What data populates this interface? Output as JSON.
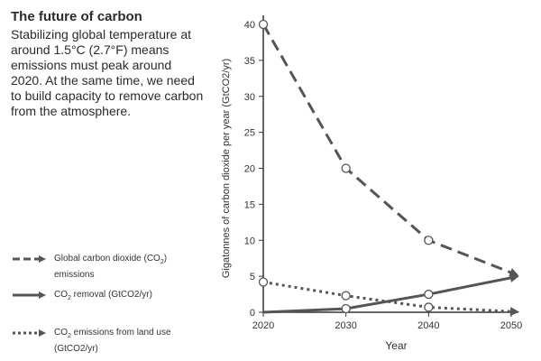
{
  "intro": {
    "title": "The future of carbon",
    "body": "Stabilizing global temperature at around 1.5°C (2.7°F) means emissions must peak around 2020. At the same time, we need to build capacity to remove carbon from the atmosphere."
  },
  "legend": {
    "items": [
      {
        "label_pre": "Global carbon dioxide (CO",
        "label_sub": "2",
        "label_post": ") emissions",
        "style": "dashed"
      },
      {
        "label_pre": "CO",
        "label_sub": "2",
        "label_post": " removal (GtCO2/yr)",
        "style": "solid"
      },
      {
        "label_pre": "CO",
        "label_sub": "2",
        "label_post": " emissions from land use (GtCO2/yr)",
        "style": "dotted"
      }
    ]
  },
  "chart_data": {
    "type": "line",
    "title": "",
    "xlabel": "Year",
    "ylabel": "Gigatonnes of carbon dioxide per year (GtCO2/yr)",
    "x": [
      2020,
      2030,
      2040,
      2050
    ],
    "xlim": [
      2020,
      2050
    ],
    "ylim": [
      0,
      40
    ],
    "yticks": [
      0,
      5,
      10,
      15,
      20,
      25,
      30,
      35,
      40
    ],
    "grid": false,
    "series": [
      {
        "name": "Global carbon dioxide (CO2) emissions",
        "style": "dashed",
        "values": [
          40,
          20,
          10,
          5.5
        ]
      },
      {
        "name": "CO2 removal (GtCO2/yr)",
        "style": "solid",
        "values": [
          0,
          0.5,
          2.5,
          4.8
        ]
      },
      {
        "name": "CO2 emissions from land use (GtCO2/yr)",
        "style": "dotted",
        "values": [
          4.2,
          2.3,
          0.7,
          0.1
        ]
      }
    ],
    "colors": {
      "line": "#555555",
      "axis": "#333333",
      "marker_fill": "#ffffff"
    }
  }
}
